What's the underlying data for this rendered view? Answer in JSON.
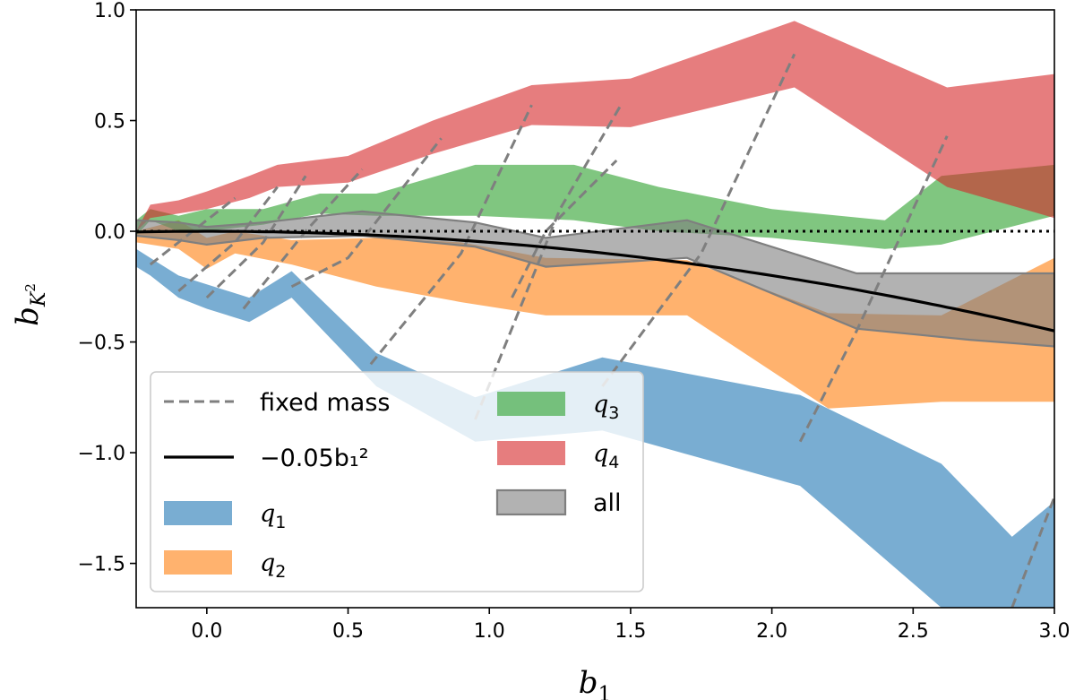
{
  "chart_data": {
    "type": "area",
    "title": "",
    "xlabel": "b_1",
    "ylabel": "b_{K^2}",
    "xlim": [
      -0.25,
      3.0
    ],
    "ylim": [
      -1.7,
      1.0
    ],
    "xticks": [
      0.0,
      0.5,
      1.0,
      1.5,
      2.0,
      2.5,
      3.0
    ],
    "xtick_labels": [
      "0.0",
      "0.5",
      "1.0",
      "1.5",
      "2.0",
      "2.5",
      "3.0"
    ],
    "yticks": [
      -1.5,
      -1.0,
      -0.5,
      0.0,
      0.5,
      1.0
    ],
    "ytick_labels": [
      "−1.5",
      "−1.0",
      "−0.5",
      "0.0",
      "0.5",
      "1.0"
    ],
    "reference_line": {
      "y": 0.0,
      "style": "dotted",
      "color": "#000000"
    },
    "series": [
      {
        "name": "q1",
        "label_base": "q",
        "label_sub": "1",
        "kind": "band",
        "color": "#1f77b4",
        "opacity": 0.6,
        "edge": false,
        "x": [
          -0.25,
          -0.2,
          -0.1,
          0.0,
          0.15,
          0.3,
          0.6,
          0.95,
          1.4,
          2.1,
          2.6,
          2.85,
          3.0
        ],
        "upper": [
          -0.08,
          -0.12,
          -0.2,
          -0.24,
          -0.3,
          -0.18,
          -0.55,
          -0.75,
          -0.57,
          -0.74,
          -1.05,
          -1.38,
          -1.22
        ],
        "lower": [
          -0.16,
          -0.2,
          -0.3,
          -0.35,
          -0.41,
          -0.3,
          -0.7,
          -0.95,
          -0.9,
          -1.15,
          -1.7,
          -1.7,
          -1.7
        ]
      },
      {
        "name": "q2",
        "label_base": "q",
        "label_sub": "2",
        "kind": "band",
        "color": "#ff7f0e",
        "opacity": 0.6,
        "edge": false,
        "x": [
          -0.25,
          -0.1,
          0.0,
          0.1,
          0.3,
          0.6,
          0.9,
          1.2,
          1.7,
          2.2,
          2.6,
          3.0
        ],
        "upper": [
          0.0,
          0.05,
          -0.03,
          0.0,
          -0.04,
          -0.03,
          -0.05,
          -0.12,
          -0.13,
          -0.37,
          -0.38,
          -0.12
        ],
        "lower": [
          -0.05,
          -0.08,
          -0.17,
          -0.1,
          -0.15,
          -0.25,
          -0.32,
          -0.38,
          -0.38,
          -0.8,
          -0.77,
          -0.77
        ]
      },
      {
        "name": "q3",
        "label_base": "q",
        "label_sub": "3",
        "kind": "band",
        "color": "#2ca02c",
        "opacity": 0.6,
        "edge": false,
        "x": [
          -0.25,
          -0.2,
          -0.1,
          0.0,
          0.2,
          0.4,
          0.6,
          0.95,
          1.3,
          1.6,
          2.0,
          2.4,
          2.6,
          3.0
        ],
        "upper": [
          0.05,
          0.1,
          0.07,
          0.1,
          0.1,
          0.17,
          0.17,
          0.3,
          0.3,
          0.2,
          0.1,
          0.05,
          0.25,
          0.3
        ],
        "lower": [
          -0.02,
          0.05,
          0.0,
          0.0,
          0.03,
          0.08,
          0.07,
          0.07,
          0.05,
          0.0,
          -0.03,
          -0.08,
          -0.06,
          0.07
        ]
      },
      {
        "name": "q4",
        "label_base": "q",
        "label_sub": "4",
        "kind": "band",
        "color": "#d62728",
        "opacity": 0.6,
        "edge": false,
        "x": [
          -0.25,
          -0.2,
          -0.1,
          0.0,
          0.15,
          0.25,
          0.5,
          0.8,
          1.15,
          1.5,
          2.08,
          2.62,
          3.0
        ],
        "upper": [
          0.0,
          0.12,
          0.14,
          0.18,
          0.25,
          0.3,
          0.34,
          0.5,
          0.66,
          0.69,
          0.95,
          0.65,
          0.71
        ],
        "lower": [
          0.0,
          0.06,
          0.08,
          0.1,
          0.15,
          0.2,
          0.22,
          0.35,
          0.48,
          0.47,
          0.65,
          0.2,
          0.06
        ]
      },
      {
        "name": "all",
        "label_base": "all",
        "label_sub": "",
        "kind": "band",
        "color": "#7f7f7f",
        "opacity": 0.6,
        "edge": true,
        "x": [
          -0.25,
          -0.1,
          0.0,
          0.2,
          0.55,
          0.95,
          1.2,
          1.7,
          2.3,
          2.7,
          3.0
        ],
        "upper": [
          0.05,
          0.04,
          0.02,
          0.04,
          0.09,
          0.04,
          -0.03,
          0.05,
          -0.19,
          -0.19,
          -0.19
        ],
        "lower": [
          -0.02,
          -0.04,
          -0.06,
          -0.03,
          -0.02,
          -0.07,
          -0.16,
          -0.12,
          -0.44,
          -0.49,
          -0.52
        ]
      }
    ],
    "fit_curve": {
      "label": "−0.05b₁²",
      "coefficient": -0.05,
      "power": 2,
      "color": "#000000",
      "x_range": [
        -0.25,
        3.0
      ]
    },
    "fixed_mass": {
      "label": "fixed mass",
      "color": "#7f7f7f",
      "style": "dashed",
      "lines": [
        [
          [
            -0.2,
            -0.15
          ],
          [
            0.0,
            0.05
          ],
          [
            0.1,
            0.15
          ]
        ],
        [
          [
            -0.1,
            -0.27
          ],
          [
            0.1,
            -0.05
          ],
          [
            0.25,
            0.2
          ]
        ],
        [
          [
            0.0,
            -0.3
          ],
          [
            0.2,
            -0.05
          ],
          [
            0.35,
            0.25
          ]
        ],
        [
          [
            0.13,
            -0.35
          ],
          [
            0.35,
            0.0
          ],
          [
            0.55,
            0.28
          ]
        ],
        [
          [
            0.3,
            -0.25
          ],
          [
            0.5,
            -0.12
          ],
          [
            0.83,
            0.42
          ]
        ],
        [
          [
            0.58,
            -0.6
          ],
          [
            0.9,
            -0.1
          ],
          [
            1.15,
            0.57
          ]
        ],
        [
          [
            0.95,
            -0.85
          ],
          [
            1.25,
            0.1
          ],
          [
            1.47,
            0.58
          ]
        ],
        [
          [
            1.08,
            -0.3
          ],
          [
            1.2,
            0.0
          ],
          [
            1.45,
            0.32
          ]
        ],
        [
          [
            1.4,
            -0.7
          ],
          [
            1.75,
            -0.1
          ],
          [
            2.08,
            0.8
          ]
        ],
        [
          [
            2.1,
            -0.95
          ],
          [
            2.3,
            -0.45
          ],
          [
            2.62,
            0.43
          ]
        ],
        [
          [
            2.85,
            -1.7
          ],
          [
            3.0,
            -1.2
          ]
        ]
      ]
    },
    "legend": {
      "location": "lower-left",
      "entries": [
        {
          "kind": "dash",
          "label": "fixed mass"
        },
        {
          "kind": "fit",
          "label": "−0.05b₁²"
        },
        {
          "kind": "swatch",
          "series": "q1"
        },
        {
          "kind": "swatch",
          "series": "q2"
        },
        {
          "kind": "swatch",
          "series": "q3"
        },
        {
          "kind": "swatch",
          "series": "q4"
        },
        {
          "kind": "swatch",
          "series": "all"
        }
      ]
    }
  }
}
